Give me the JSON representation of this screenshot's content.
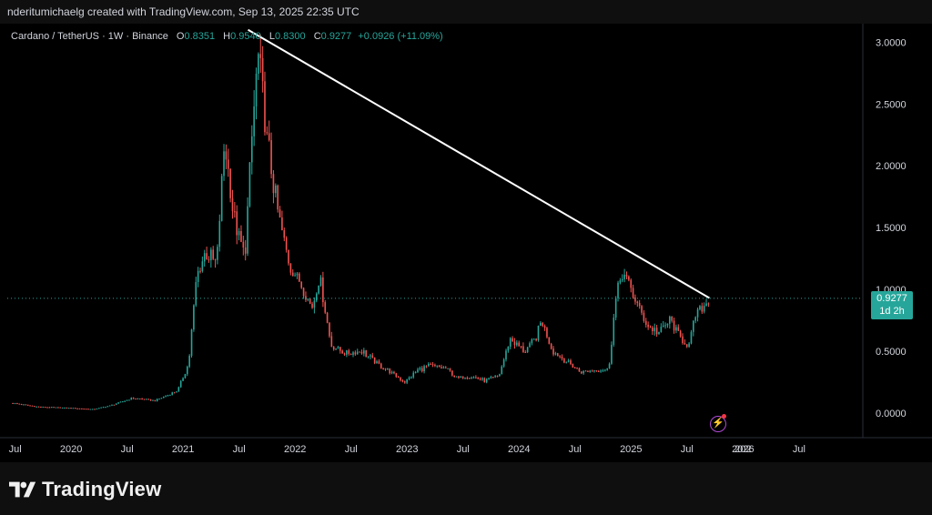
{
  "header": {
    "credit": "nderitumichaelg created with TradingView.com, Sep 13, 2025 22:35 UTC"
  },
  "legend": {
    "symbol": "Cardano / TetherUS · 1W · Binance",
    "o_label": "O",
    "o_value": "0.8351",
    "h_label": "H",
    "h_value": "0.9540",
    "l_label": "L",
    "l_value": "0.8300",
    "c_label": "C",
    "c_value": "0.9277",
    "change": "+0.0926 (+11.09%)"
  },
  "price_tag": {
    "price": "0.9277",
    "countdown": "1d 2h"
  },
  "footer": {
    "brand": "TradingView",
    "logo_icon": "tradingview-logo-icon"
  },
  "icons": {
    "flash": "flash-icon"
  },
  "colors": {
    "up": "#26a69a",
    "down": "#ef5350",
    "trendline": "#ffffff",
    "background": "#000000"
  },
  "chart_data": {
    "type": "candlestick",
    "interval": "1W",
    "title": "Cardano / TetherUS · 1W · Binance",
    "y_ticks": [
      "0.0000",
      "0.5000",
      "1.0000",
      "1.5000",
      "2.0000",
      "2.5000",
      "3.0000"
    ],
    "x_ticks": [
      "Jul",
      "2020",
      "Jul",
      "2021",
      "Jul",
      "2022",
      "Jul",
      "2023",
      "Jul",
      "2024",
      "Jul",
      "2025",
      "Jul",
      "2026",
      "Jul",
      "202"
    ],
    "ylim": [
      -0.2,
      3.15
    ],
    "xlim": [
      2019.43,
      2027.07
    ],
    "last_price": 0.9277,
    "grid": false,
    "price_path": [
      [
        2019.48,
        0.08
      ],
      [
        2019.7,
        0.05
      ],
      [
        2020.0,
        0.04
      ],
      [
        2020.2,
        0.03
      ],
      [
        2020.35,
        0.06
      ],
      [
        2020.55,
        0.12
      ],
      [
        2020.75,
        0.1
      ],
      [
        2020.95,
        0.18
      ],
      [
        2021.05,
        0.4
      ],
      [
        2021.12,
        1.1
      ],
      [
        2021.2,
        1.3
      ],
      [
        2021.3,
        1.2
      ],
      [
        2021.37,
        2.2
      ],
      [
        2021.45,
        1.6
      ],
      [
        2021.55,
        1.25
      ],
      [
        2021.62,
        2.3
      ],
      [
        2021.67,
        2.9
      ],
      [
        2021.75,
        2.2
      ],
      [
        2021.85,
        1.6
      ],
      [
        2021.95,
        1.2
      ],
      [
        2022.05,
        1.05
      ],
      [
        2022.15,
        0.85
      ],
      [
        2022.22,
        1.1
      ],
      [
        2022.32,
        0.55
      ],
      [
        2022.45,
        0.48
      ],
      [
        2022.6,
        0.5
      ],
      [
        2022.7,
        0.42
      ],
      [
        2022.85,
        0.33
      ],
      [
        2022.98,
        0.25
      ],
      [
        2023.1,
        0.35
      ],
      [
        2023.2,
        0.38
      ],
      [
        2023.35,
        0.36
      ],
      [
        2023.45,
        0.28
      ],
      [
        2023.55,
        0.3
      ],
      [
        2023.7,
        0.26
      ],
      [
        2023.82,
        0.3
      ],
      [
        2023.92,
        0.6
      ],
      [
        2024.05,
        0.5
      ],
      [
        2024.15,
        0.6
      ],
      [
        2024.2,
        0.75
      ],
      [
        2024.3,
        0.5
      ],
      [
        2024.45,
        0.4
      ],
      [
        2024.55,
        0.33
      ],
      [
        2024.7,
        0.35
      ],
      [
        2024.8,
        0.35
      ],
      [
        2024.86,
        0.9
      ],
      [
        2024.92,
        1.15
      ],
      [
        2025.0,
        1.0
      ],
      [
        2025.07,
        0.85
      ],
      [
        2025.15,
        0.7
      ],
      [
        2025.25,
        0.65
      ],
      [
        2025.35,
        0.75
      ],
      [
        2025.45,
        0.6
      ],
      [
        2025.52,
        0.55
      ],
      [
        2025.58,
        0.8
      ],
      [
        2025.64,
        0.85
      ],
      [
        2025.7,
        0.9277
      ]
    ],
    "trendline": {
      "start": [
        2021.58,
        3.1
      ],
      "end": [
        2025.7,
        0.93
      ]
    }
  }
}
